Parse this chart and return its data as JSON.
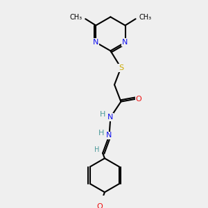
{
  "background_color": "#efefef",
  "atom_colors": {
    "C": "#000000",
    "N": "#1010ee",
    "O": "#ee1010",
    "S": "#ccaa00",
    "H": "#4a9999"
  },
  "bond_color": "#000000",
  "figsize": [
    3.0,
    3.0
  ],
  "dpi": 100,
  "bond_lw": 1.5,
  "font_size_atom": 8,
  "font_size_methyl": 7
}
